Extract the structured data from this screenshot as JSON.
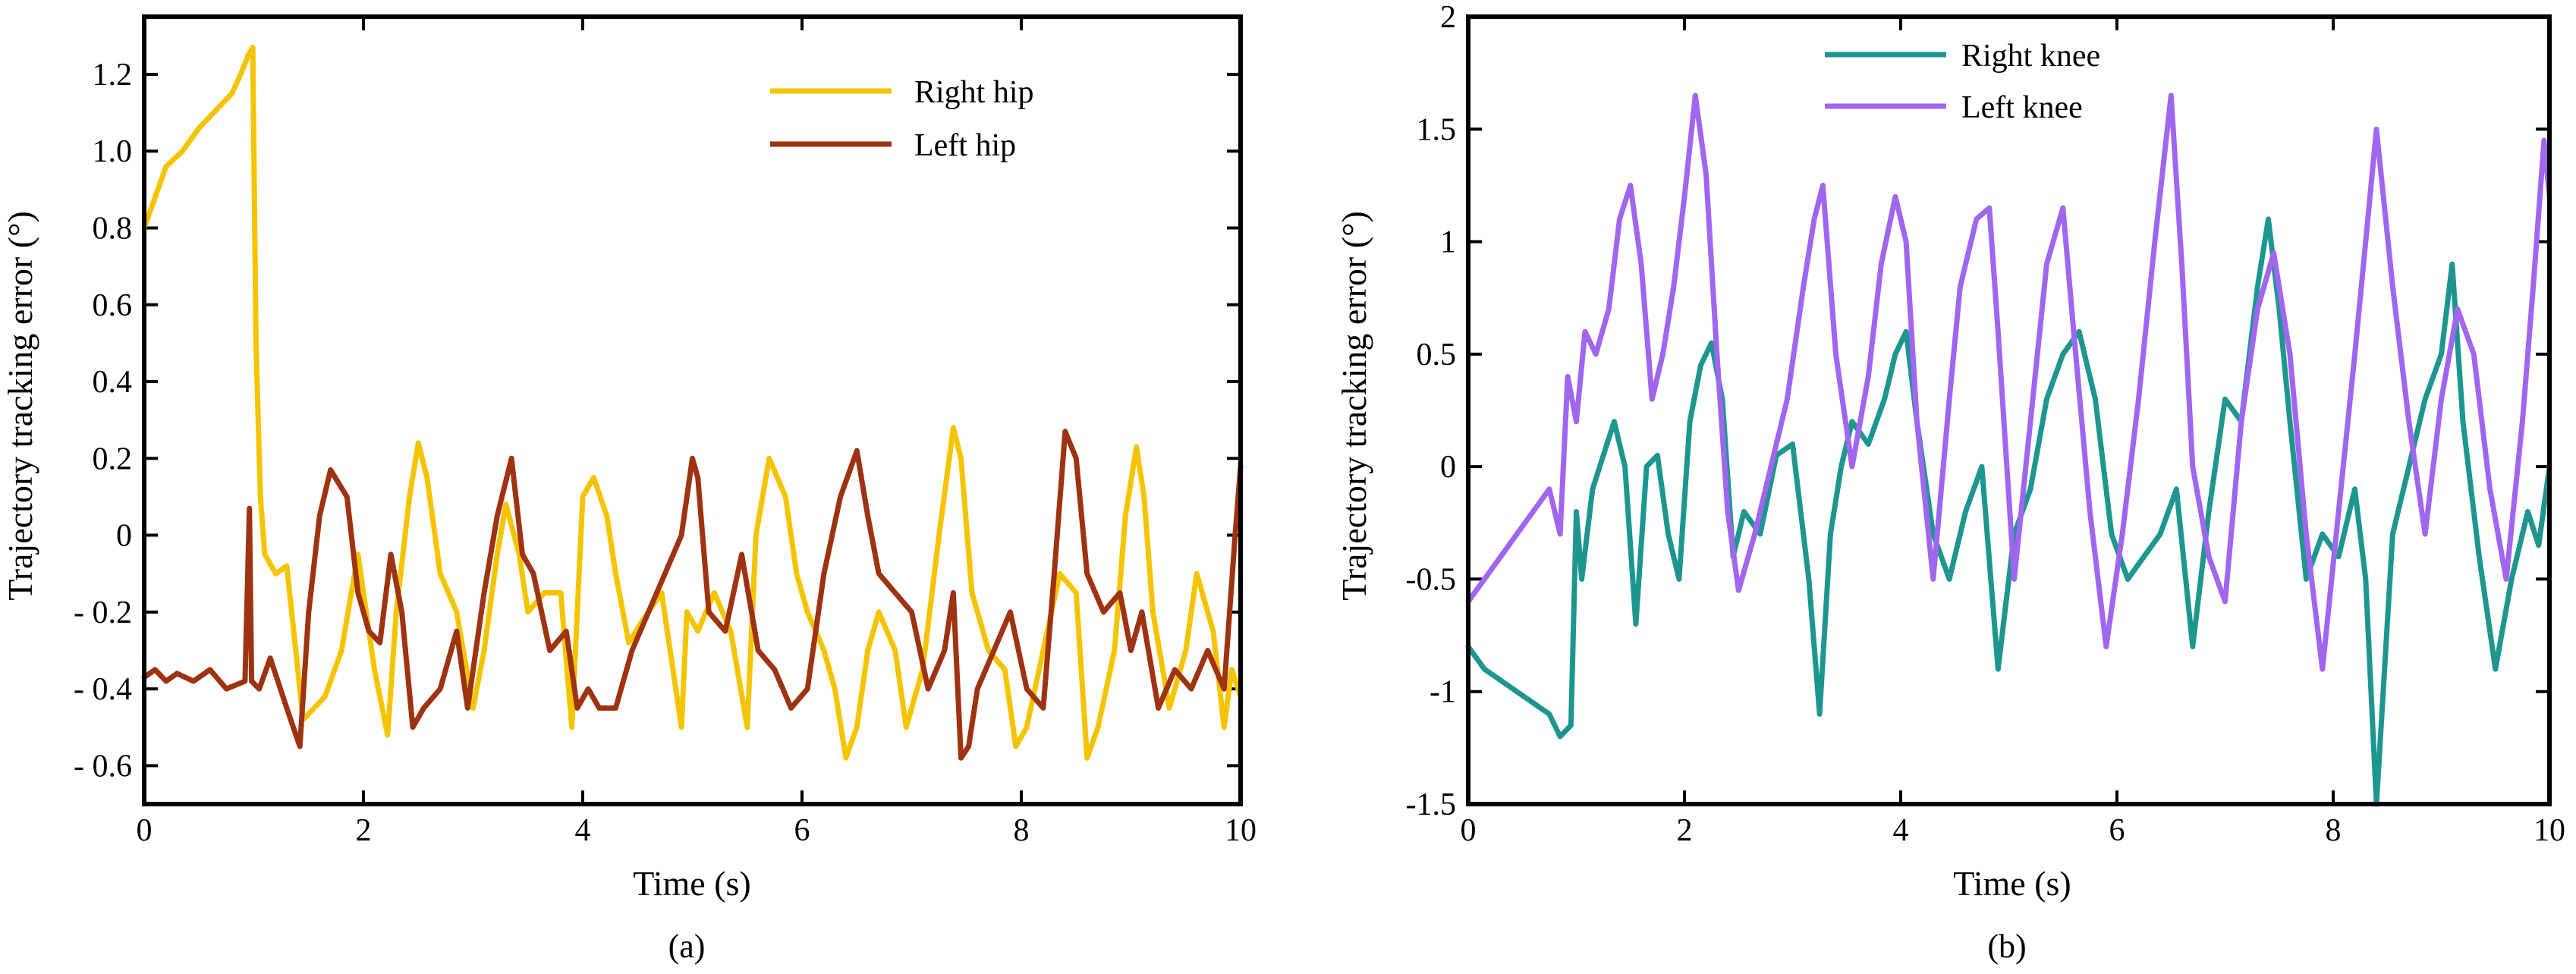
{
  "chart_data": [
    {
      "type": "line",
      "panel": "(a)",
      "caption": "(a)",
      "xlabel": "Time (s)",
      "ylabel": "Trajectory tracking error (°)",
      "xlim": [
        0,
        10
      ],
      "ylim": [
        -0.7,
        1.35
      ],
      "xticks": [
        0,
        2,
        4,
        6,
        8,
        10
      ],
      "xtick_labels": [
        "0",
        "2",
        "4",
        "6",
        "8",
        "10"
      ],
      "yticks": [
        1.2,
        1.0,
        0.8,
        0.6,
        0.4,
        0.2,
        0,
        -0.2,
        -0.4,
        -0.6
      ],
      "ytick_labels": [
        "1.2",
        "1.0",
        "0.8",
        "0.6",
        "0.4",
        "0.2",
        "0",
        "- 0.2",
        "- 0.4",
        "- 0.6"
      ],
      "grid": false,
      "legend_position": "top-right",
      "series": [
        {
          "name": "Right hip",
          "color": "#F5C400",
          "x": [
            0,
            0.2,
            0.35,
            0.5,
            0.7,
            0.8,
            0.88,
            0.95,
            0.99,
            1.02,
            1.06,
            1.1,
            1.2,
            1.3,
            1.45,
            1.55,
            1.65,
            1.8,
            1.95,
            2.1,
            2.22,
            2.3,
            2.42,
            2.5,
            2.58,
            2.7,
            2.85,
            3.0,
            3.1,
            3.22,
            3.3,
            3.42,
            3.5,
            3.65,
            3.8,
            3.9,
            4.0,
            4.1,
            4.22,
            4.3,
            4.42,
            4.55,
            4.72,
            4.9,
            4.95,
            5.05,
            5.2,
            5.35,
            5.5,
            5.58,
            5.7,
            5.85,
            5.95,
            6.05,
            6.2,
            6.3,
            6.4,
            6.5,
            6.6,
            6.7,
            6.85,
            6.95,
            7.1,
            7.25,
            7.38,
            7.45,
            7.55,
            7.7,
            7.85,
            7.95,
            8.05,
            8.2,
            8.35,
            8.5,
            8.6,
            8.7,
            8.85,
            8.95,
            9.05,
            9.12,
            9.2,
            9.35,
            9.5,
            9.6,
            9.75,
            9.85,
            9.92,
            10.0
          ],
          "y": [
            0.8,
            0.96,
            1.0,
            1.06,
            1.12,
            1.15,
            1.2,
            1.25,
            1.27,
            0.5,
            0.1,
            -0.05,
            -0.1,
            -0.08,
            -0.48,
            -0.45,
            -0.42,
            -0.3,
            -0.05,
            -0.35,
            -0.52,
            -0.2,
            0.1,
            0.24,
            0.15,
            -0.1,
            -0.2,
            -0.45,
            -0.3,
            -0.05,
            0.08,
            -0.05,
            -0.2,
            -0.15,
            -0.15,
            -0.5,
            0.1,
            0.15,
            0.05,
            -0.1,
            -0.28,
            -0.22,
            -0.15,
            -0.5,
            -0.2,
            -0.25,
            -0.15,
            -0.25,
            -0.5,
            0.0,
            0.2,
            0.1,
            -0.1,
            -0.2,
            -0.3,
            -0.4,
            -0.58,
            -0.5,
            -0.3,
            -0.2,
            -0.3,
            -0.5,
            -0.35,
            0.0,
            0.28,
            0.2,
            -0.15,
            -0.3,
            -0.35,
            -0.55,
            -0.5,
            -0.3,
            -0.1,
            -0.15,
            -0.58,
            -0.5,
            -0.3,
            0.05,
            0.23,
            0.1,
            -0.2,
            -0.45,
            -0.3,
            -0.1,
            -0.25,
            -0.5,
            -0.35,
            -0.42
          ]
        },
        {
          "name": "Left hip",
          "color": "#9E3311",
          "x": [
            0,
            0.1,
            0.2,
            0.3,
            0.45,
            0.6,
            0.75,
            0.92,
            0.96,
            0.98,
            1.05,
            1.15,
            1.3,
            1.42,
            1.5,
            1.6,
            1.7,
            1.85,
            1.95,
            2.05,
            2.15,
            2.25,
            2.35,
            2.45,
            2.55,
            2.7,
            2.85,
            2.95,
            3.1,
            3.22,
            3.35,
            3.45,
            3.55,
            3.7,
            3.85,
            3.95,
            4.05,
            4.15,
            4.3,
            4.45,
            4.6,
            4.75,
            4.9,
            5.0,
            5.05,
            5.15,
            5.3,
            5.45,
            5.6,
            5.75,
            5.9,
            6.05,
            6.2,
            6.35,
            6.5,
            6.6,
            6.7,
            6.85,
            7.0,
            7.15,
            7.3,
            7.38,
            7.45,
            7.52,
            7.6,
            7.75,
            7.9,
            8.05,
            8.2,
            8.3,
            8.4,
            8.5,
            8.6,
            8.75,
            8.9,
            9.0,
            9.1,
            9.25,
            9.4,
            9.55,
            9.7,
            9.85,
            9.95,
            10.0
          ],
          "y": [
            -0.37,
            -0.35,
            -0.38,
            -0.36,
            -0.38,
            -0.35,
            -0.4,
            -0.38,
            0.07,
            -0.38,
            -0.4,
            -0.32,
            -0.45,
            -0.55,
            -0.2,
            0.05,
            0.17,
            0.1,
            -0.15,
            -0.25,
            -0.28,
            -0.05,
            -0.2,
            -0.5,
            -0.45,
            -0.4,
            -0.25,
            -0.45,
            -0.15,
            0.05,
            0.2,
            -0.05,
            -0.1,
            -0.3,
            -0.25,
            -0.45,
            -0.4,
            -0.45,
            -0.45,
            -0.3,
            -0.2,
            -0.1,
            0.0,
            0.2,
            0.15,
            -0.2,
            -0.25,
            -0.05,
            -0.3,
            -0.35,
            -0.45,
            -0.4,
            -0.1,
            0.1,
            0.22,
            0.05,
            -0.1,
            -0.15,
            -0.2,
            -0.4,
            -0.3,
            -0.15,
            -0.58,
            -0.55,
            -0.4,
            -0.3,
            -0.2,
            -0.4,
            -0.45,
            -0.1,
            0.27,
            0.2,
            -0.1,
            -0.2,
            -0.15,
            -0.3,
            -0.2,
            -0.45,
            -0.35,
            -0.4,
            -0.3,
            -0.4,
            0.0,
            0.18
          ]
        }
      ]
    },
    {
      "type": "line",
      "panel": "(b)",
      "caption": "(b)",
      "xlabel": "Time (s)",
      "ylabel": "Trajectory tracking error (°)",
      "xlim": [
        0,
        10
      ],
      "ylim": [
        -1.5,
        2
      ],
      "xticks": [
        0,
        2,
        4,
        6,
        8,
        10
      ],
      "xtick_labels": [
        "0",
        "2",
        "4",
        "6",
        "8",
        "10"
      ],
      "yticks": [
        2,
        1.5,
        1,
        0.5,
        0,
        -0.5,
        -1,
        -1.5
      ],
      "ytick_labels": [
        "2",
        "1.5",
        "1",
        "0.5",
        "0",
        "-0.5",
        "-1",
        "-1.5"
      ],
      "grid": false,
      "legend_position": "top-center",
      "series": [
        {
          "name": "Right knee",
          "color": "#1E9690",
          "x": [
            0,
            0.15,
            0.3,
            0.45,
            0.6,
            0.75,
            0.85,
            0.95,
            1.0,
            1.05,
            1.15,
            1.25,
            1.35,
            1.45,
            1.55,
            1.65,
            1.75,
            1.85,
            1.95,
            2.05,
            2.15,
            2.25,
            2.35,
            2.45,
            2.55,
            2.7,
            2.85,
            3.0,
            3.15,
            3.25,
            3.35,
            3.45,
            3.55,
            3.7,
            3.85,
            3.95,
            4.05,
            4.15,
            4.3,
            4.45,
            4.6,
            4.75,
            4.9,
            5.05,
            5.2,
            5.35,
            5.5,
            5.65,
            5.8,
            5.95,
            6.1,
            6.25,
            6.4,
            6.55,
            6.7,
            6.85,
            7.0,
            7.15,
            7.3,
            7.4,
            7.5,
            7.6,
            7.75,
            7.9,
            8.05,
            8.2,
            8.3,
            8.4,
            8.55,
            8.7,
            8.85,
            9.0,
            9.1,
            9.2,
            9.35,
            9.5,
            9.65,
            9.8,
            9.9,
            10.0
          ],
          "y": [
            -0.8,
            -0.9,
            -0.95,
            -1.0,
            -1.05,
            -1.1,
            -1.2,
            -1.15,
            -0.2,
            -0.5,
            -0.1,
            0.05,
            0.2,
            0.0,
            -0.7,
            0.0,
            0.05,
            -0.3,
            -0.5,
            0.2,
            0.45,
            0.55,
            0.3,
            -0.4,
            -0.2,
            -0.3,
            0.05,
            0.1,
            -0.5,
            -1.1,
            -0.3,
            0.0,
            0.2,
            0.1,
            0.3,
            0.5,
            0.6,
            0.2,
            -0.3,
            -0.5,
            -0.2,
            0.0,
            -0.9,
            -0.3,
            -0.1,
            0.3,
            0.5,
            0.6,
            0.3,
            -0.3,
            -0.5,
            -0.4,
            -0.3,
            -0.1,
            -0.8,
            -0.2,
            0.3,
            0.2,
            0.8,
            1.1,
            0.7,
            0.2,
            -0.5,
            -0.3,
            -0.4,
            -0.1,
            -0.5,
            -1.5,
            -0.3,
            0.0,
            0.3,
            0.5,
            0.9,
            0.2,
            -0.4,
            -0.9,
            -0.5,
            -0.2,
            -0.35,
            0.0
          ]
        },
        {
          "name": "Left knee",
          "color": "#A066F0",
          "x": [
            0,
            0.15,
            0.3,
            0.45,
            0.6,
            0.75,
            0.85,
            0.92,
            1.0,
            1.08,
            1.18,
            1.3,
            1.4,
            1.5,
            1.6,
            1.7,
            1.8,
            1.9,
            2.0,
            2.1,
            2.2,
            2.3,
            2.4,
            2.5,
            2.65,
            2.8,
            2.95,
            3.1,
            3.2,
            3.28,
            3.4,
            3.55,
            3.7,
            3.82,
            3.95,
            4.05,
            4.15,
            4.3,
            4.45,
            4.55,
            4.7,
            4.82,
            4.9,
            5.05,
            5.2,
            5.35,
            5.5,
            5.6,
            5.75,
            5.9,
            6.05,
            6.2,
            6.35,
            6.5,
            6.6,
            6.7,
            6.85,
            7.0,
            7.15,
            7.3,
            7.45,
            7.6,
            7.75,
            7.9,
            8.05,
            8.2,
            8.3,
            8.4,
            8.55,
            8.7,
            8.85,
            9.0,
            9.15,
            9.3,
            9.45,
            9.6,
            9.75,
            9.85,
            9.95,
            10.0
          ],
          "y": [
            -0.6,
            -0.5,
            -0.4,
            -0.3,
            -0.2,
            -0.1,
            -0.3,
            0.4,
            0.2,
            0.6,
            0.5,
            0.7,
            1.1,
            1.25,
            0.9,
            0.3,
            0.5,
            0.8,
            1.2,
            1.65,
            1.3,
            0.5,
            -0.2,
            -0.55,
            -0.3,
            0.0,
            0.3,
            0.8,
            1.1,
            1.25,
            0.5,
            0.0,
            0.4,
            0.9,
            1.2,
            1.0,
            0.2,
            -0.5,
            0.3,
            0.8,
            1.1,
            1.15,
            0.6,
            -0.5,
            0.2,
            0.9,
            1.15,
            0.6,
            -0.2,
            -0.8,
            -0.3,
            0.3,
            1.0,
            1.65,
            0.9,
            0.0,
            -0.4,
            -0.6,
            0.2,
            0.7,
            0.95,
            0.5,
            -0.3,
            -0.9,
            -0.2,
            0.5,
            1.0,
            1.5,
            0.8,
            0.2,
            -0.3,
            0.3,
            0.7,
            0.5,
            -0.1,
            -0.5,
            0.2,
            0.8,
            1.45,
            1.2
          ]
        }
      ]
    }
  ]
}
